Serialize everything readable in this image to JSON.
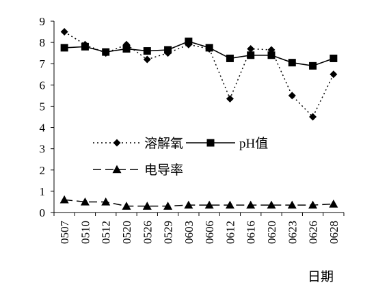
{
  "chart_data": {
    "type": "line",
    "xlabel": "日期",
    "ylabel": "",
    "ylim": [
      0,
      9
    ],
    "yticks": [
      0,
      1,
      2,
      3,
      4,
      5,
      6,
      7,
      8,
      9
    ],
    "categories": [
      "0507",
      "0510",
      "0512",
      "0520",
      "0526",
      "0529",
      "0603",
      "0606",
      "0612",
      "0616",
      "0620",
      "0623",
      "0626",
      "0628"
    ],
    "grid": false,
    "legend_position": "center-left",
    "series": [
      {
        "name": "溶解氧",
        "marker": "diamond",
        "line": "dotted",
        "values": [
          8.5,
          7.9,
          7.5,
          7.9,
          7.2,
          7.5,
          7.9,
          7.7,
          5.35,
          7.7,
          7.65,
          5.5,
          4.5,
          6.5
        ]
      },
      {
        "name": "pH值",
        "marker": "square",
        "line": "solid",
        "values": [
          7.75,
          7.8,
          7.55,
          7.7,
          7.6,
          7.65,
          8.05,
          7.75,
          7.25,
          7.4,
          7.4,
          7.05,
          6.9,
          7.25
        ]
      },
      {
        "name": "电导率",
        "marker": "triangle",
        "line": "dashed",
        "values": [
          0.6,
          0.5,
          0.5,
          0.3,
          0.3,
          0.3,
          0.35,
          0.35,
          0.35,
          0.35,
          0.35,
          0.35,
          0.35,
          0.4
        ]
      }
    ]
  }
}
